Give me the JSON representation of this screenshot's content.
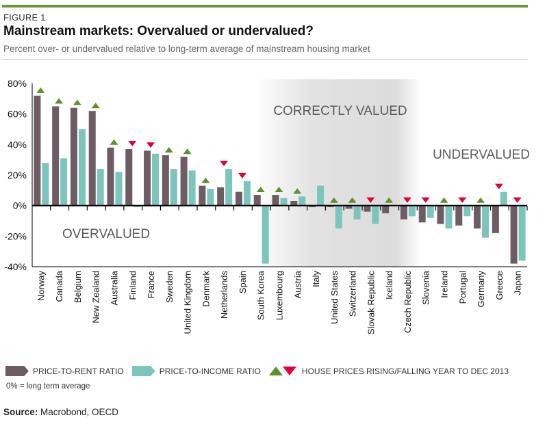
{
  "header": {
    "figure_label": "FIGURE 1",
    "title": "Mainstream markets: Overvalued or undervalued?",
    "subtitle": "Percent over- or undervalued relative to long-term average of mainstream housing market"
  },
  "colors": {
    "accent_bar": "#6a9534",
    "price_to_rent": "#6e5c64",
    "price_to_income": "#7cc5bd",
    "rising": "#5f8f2e",
    "falling": "#e0003a",
    "zone_shade": "#dcdcdc"
  },
  "chart_data": {
    "type": "bar",
    "title": "Mainstream markets: Overvalued or undervalued?",
    "subtitle": "Percent over- or undervalued relative to long-term average of mainstream housing market",
    "xlabel": "",
    "ylabel": "",
    "ylim": [
      -40,
      80
    ],
    "yticks": [
      -40,
      -20,
      0,
      20,
      40,
      60,
      80
    ],
    "ytick_labels": [
      "-40%",
      "-20%",
      "0%",
      "20%",
      "40%",
      "60%",
      "80%"
    ],
    "grid": false,
    "legend_position": "bottom",
    "categories": [
      "Norway",
      "Canada",
      "Belgium",
      "New Zealand",
      "Australia",
      "Finland",
      "France",
      "Sweden",
      "United Kingdom",
      "Denmark",
      "Netherlands",
      "Spain",
      "South Korea",
      "Luxembourg",
      "Austria",
      "Italy",
      "United States",
      "Switzerland",
      "Slovak Republic",
      "Iceland",
      "Czech Republic",
      "Slovenia",
      "Ireland",
      "Portugal",
      "Germany",
      "Greece",
      "Japan"
    ],
    "series": [
      {
        "name": "PRICE-TO-RENT RATIO",
        "values": [
          72,
          65,
          64,
          62,
          38,
          37,
          36,
          33,
          32,
          13,
          12,
          9,
          7,
          7,
          3,
          -1,
          -1,
          -2,
          -4,
          -5,
          -9,
          -11,
          -12,
          -13,
          -15,
          -18,
          -38
        ]
      },
      {
        "name": "PRICE-TO-INCOME RATIO",
        "values": [
          28,
          31,
          50,
          24,
          22,
          -1,
          34,
          24,
          23,
          11,
          24,
          16,
          -38,
          5,
          6,
          13,
          -15,
          -9,
          -12,
          0,
          -7,
          -8,
          -15,
          -7,
          -21,
          9,
          -36
        ]
      }
    ],
    "price_trend": [
      "up",
      "up",
      "up",
      "up",
      "up",
      "down",
      "down",
      "up",
      "up",
      "up",
      "down",
      "down",
      "up",
      "up",
      "up",
      "none",
      "up",
      "up",
      "down",
      "up",
      "down",
      "down",
      "up",
      "down",
      "up",
      "down",
      "down"
    ],
    "price_trend_legend": "HOUSE PRICES RISING/FALLING YEAR TO DEC 2013",
    "annotations": [
      "OVERVALUED",
      "CORRECTLY VALUED",
      "UNDERVALUED"
    ],
    "shaded_zone": {
      "label": "CORRECTLY VALUED",
      "from_category": "Luxembourg",
      "to_category": "Czech Republic"
    }
  },
  "legend": {
    "rent_label": "PRICE-TO-RENT RATIO",
    "income_label": "PRICE-TO-INCOME RATIO",
    "trend_label": "HOUSE PRICES RISING/FALLING YEAR TO DEC 2013",
    "note": "0%  = long term average"
  },
  "source": {
    "label": "Source:",
    "text": " Macrobond, OECD"
  }
}
